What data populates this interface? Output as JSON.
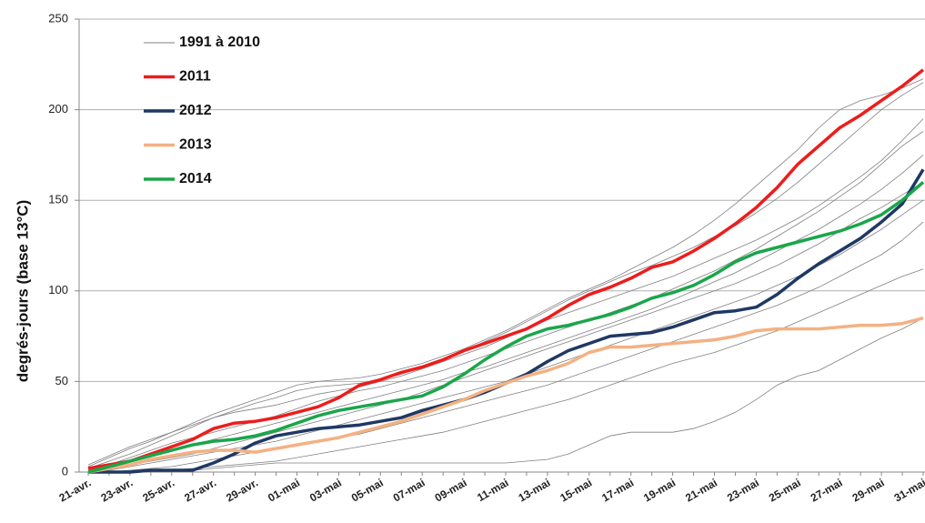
{
  "chart_data": {
    "type": "line",
    "y_label": "degrés-jours (base 13°C)",
    "categories": [
      "21-avr.",
      null,
      "23-avr.",
      null,
      "25-avr.",
      null,
      "27-avr.",
      null,
      "29-avr.",
      null,
      "01-mai",
      null,
      "03-mai",
      null,
      "05-mai",
      null,
      "07-mai",
      null,
      "09-mai",
      null,
      "11-mai",
      null,
      "13-mai",
      null,
      "15-mai",
      null,
      "17-mai",
      null,
      "19-mai",
      null,
      "21-mai",
      null,
      "23-mai",
      null,
      "25-mai",
      null,
      "27-mai",
      null,
      "29-mai",
      null,
      "31-mai"
    ],
    "ylim": [
      0,
      250
    ],
    "yticks": [
      0,
      50,
      100,
      150,
      200,
      250
    ],
    "grid": true,
    "series": [
      {
        "name": "1991 à 2010",
        "color": "#808080",
        "values": [
          [
            3,
            8,
            13,
            17,
            22,
            27,
            32,
            36,
            40,
            44,
            48,
            50,
            51,
            52,
            54,
            57,
            60,
            64,
            68,
            73,
            78,
            84,
            90,
            96,
            101,
            106,
            112,
            118,
            124,
            131,
            139,
            148,
            158,
            168,
            178,
            190,
            200,
            205,
            208,
            212,
            217
          ],
          [
            4,
            9,
            14,
            18,
            22,
            26,
            30,
            34,
            38,
            41,
            45,
            47,
            48,
            49,
            51,
            54,
            58,
            62,
            67,
            72,
            77,
            83,
            89,
            95,
            100,
            105,
            110,
            114,
            119,
            124,
            130,
            136,
            143,
            151,
            160,
            170,
            180,
            190,
            200,
            208,
            215
          ],
          [
            2,
            6,
            10,
            15,
            20,
            25,
            30,
            33,
            35,
            37,
            40,
            43,
            45,
            47,
            50,
            53,
            57,
            61,
            65,
            69,
            74,
            79,
            84,
            88,
            92,
            96,
            100,
            104,
            108,
            113,
            118,
            123,
            128,
            134,
            140,
            147,
            155,
            163,
            172,
            183,
            195
          ],
          [
            1,
            4,
            8,
            12,
            16,
            19,
            22,
            25,
            28,
            31,
            35,
            39,
            42,
            45,
            47,
            50,
            53,
            56,
            60,
            64,
            68,
            72,
            76,
            80,
            84,
            88,
            92,
            96,
            101,
            106,
            111,
            117,
            123,
            130,
            137,
            144,
            152,
            160,
            170,
            180,
            188
          ],
          [
            1,
            3,
            6,
            9,
            12,
            15,
            18,
            21,
            24,
            27,
            30,
            33,
            36,
            39,
            42,
            45,
            48,
            51,
            55,
            58,
            62,
            66,
            70,
            74,
            78,
            82,
            86,
            90,
            95,
            100,
            105,
            110,
            116,
            122,
            128,
            134,
            141,
            148,
            156,
            165,
            175
          ],
          [
            0,
            2,
            4,
            6,
            8,
            10,
            13,
            16,
            19,
            22,
            25,
            28,
            31,
            34,
            37,
            40,
            44,
            48,
            52,
            56,
            60,
            64,
            68,
            72,
            76,
            80,
            84,
            88,
            92,
            96,
            100,
            104,
            109,
            114,
            120,
            126,
            133,
            140,
            146,
            153,
            160
          ],
          [
            0,
            1,
            3,
            5,
            7,
            9,
            11,
            13,
            15,
            17,
            20,
            23,
            26,
            29,
            32,
            35,
            38,
            41,
            44,
            47,
            50,
            54,
            58,
            62,
            66,
            70,
            74,
            78,
            82,
            86,
            90,
            94,
            98,
            103,
            108,
            114,
            120,
            127,
            134,
            142,
            150
          ],
          [
            0,
            0,
            1,
            2,
            3,
            5,
            7,
            9,
            11,
            13,
            15,
            17,
            19,
            21,
            24,
            27,
            30,
            33,
            36,
            39,
            42,
            45,
            48,
            52,
            56,
            60,
            64,
            68,
            72,
            76,
            80,
            84,
            88,
            92,
            97,
            102,
            108,
            114,
            120,
            128,
            138
          ],
          [
            0,
            0,
            0,
            1,
            1,
            2,
            3,
            4,
            5,
            6,
            8,
            10,
            12,
            14,
            16,
            18,
            20,
            22,
            25,
            28,
            31,
            34,
            37,
            40,
            44,
            48,
            52,
            56,
            60,
            63,
            66,
            70,
            74,
            78,
            83,
            88,
            93,
            98,
            103,
            108,
            112
          ],
          [
            0,
            0,
            0,
            0,
            0,
            1,
            2,
            3,
            4,
            5,
            5,
            5,
            5,
            5,
            5,
            5,
            5,
            5,
            5,
            5,
            5,
            6,
            7,
            10,
            15,
            20,
            22,
            22,
            22,
            24,
            28,
            33,
            40,
            48,
            53,
            56,
            62,
            68,
            74,
            79,
            85
          ]
        ]
      },
      {
        "name": "2011",
        "color": "#ee1c1c",
        "values": [
          2,
          4,
          6,
          10,
          14,
          18,
          24,
          27,
          28,
          30,
          33,
          36,
          41,
          48,
          51,
          55,
          58,
          62,
          67,
          71,
          75,
          79,
          85,
          92,
          98,
          102,
          107,
          113,
          116,
          122,
          129,
          137,
          146,
          157,
          170,
          180,
          190,
          197,
          205,
          213,
          222
        ]
      },
      {
        "name": "2012",
        "color": "#1f3864",
        "values": [
          0,
          0,
          0,
          1,
          1,
          1,
          5,
          10,
          16,
          20,
          22,
          24,
          25,
          26,
          28,
          30,
          34,
          37,
          40,
          44,
          49,
          54,
          61,
          67,
          71,
          75,
          76,
          77,
          80,
          84,
          88,
          89,
          91,
          98,
          107,
          115,
          122,
          129,
          138,
          148,
          167
        ]
      },
      {
        "name": "2013",
        "color": "#f4b183",
        "values": [
          0,
          2,
          4,
          7,
          9,
          11,
          12,
          12,
          11,
          13,
          15,
          17,
          19,
          22,
          25,
          28,
          32,
          36,
          40,
          45,
          49,
          53,
          56,
          60,
          66,
          69,
          69,
          70,
          71,
          72,
          73,
          75,
          78,
          79,
          79,
          79,
          80,
          81,
          81,
          82,
          85
        ]
      },
      {
        "name": "2014",
        "color": "#1aa64a",
        "values": [
          0,
          3,
          6,
          9,
          12,
          15,
          17,
          18,
          20,
          23,
          27,
          31,
          34,
          36,
          38,
          40,
          42,
          47,
          54,
          62,
          69,
          75,
          79,
          81,
          84,
          87,
          91,
          96,
          99,
          103,
          109,
          116,
          121,
          124,
          127,
          130,
          133,
          137,
          142,
          150,
          160
        ]
      }
    ]
  }
}
